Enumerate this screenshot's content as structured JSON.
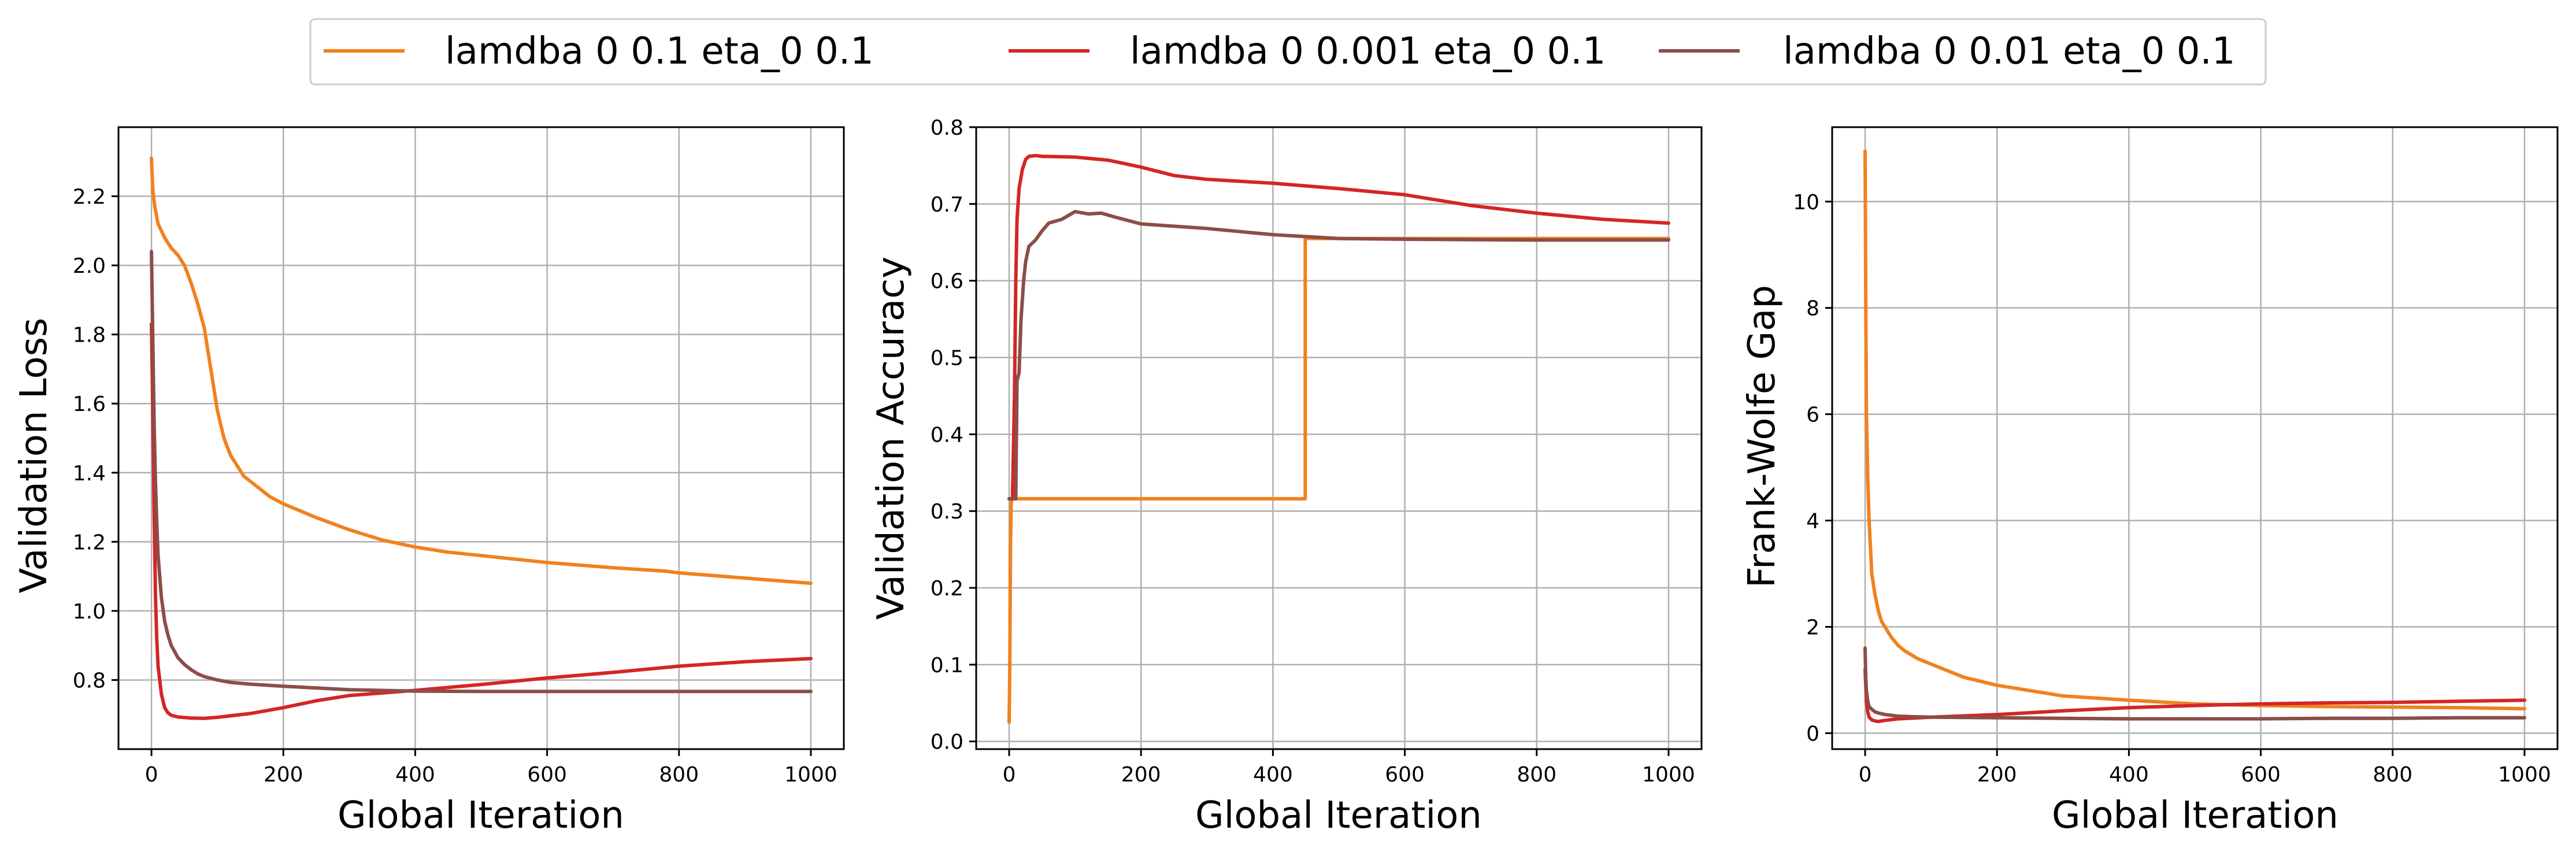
{
  "legend": {
    "placement": "top-center",
    "entries": [
      {
        "label": "lamdba 0 0.1 eta_0 0.1",
        "color": "#f0821e"
      },
      {
        "label": "lamdba 0 0.001 eta_0 0.1",
        "color": "#d32626"
      },
      {
        "label": "lamdba 0 0.01 eta_0 0.1",
        "color": "#8c4d48"
      }
    ]
  },
  "chart_data": [
    {
      "type": "line",
      "title": "",
      "xlabel": "Global Iteration",
      "ylabel": "Validation Loss",
      "xlim": [
        -50,
        1050
      ],
      "ylim": [
        0.6,
        2.4
      ],
      "xticks": [
        0,
        200,
        400,
        600,
        800,
        1000
      ],
      "yticks": [
        0.8,
        1.0,
        1.2,
        1.4,
        1.6,
        1.8,
        2.0,
        2.2
      ],
      "ytick_labels": [
        "0.8",
        "1.0",
        "1.2",
        "1.4",
        "1.6",
        "1.8",
        "2.0",
        "2.2"
      ],
      "grid": true,
      "series": [
        {
          "name": "lamdba 0 0.1 eta_0 0.1",
          "color": "#f0821e",
          "x": [
            0,
            2,
            5,
            10,
            20,
            30,
            40,
            50,
            60,
            70,
            80,
            90,
            100,
            110,
            120,
            140,
            160,
            180,
            200,
            250,
            300,
            350,
            400,
            450,
            500,
            600,
            700,
            780,
            800,
            900,
            1000
          ],
          "y": [
            2.31,
            2.22,
            2.17,
            2.12,
            2.08,
            2.05,
            2.03,
            2.0,
            1.95,
            1.89,
            1.82,
            1.7,
            1.58,
            1.5,
            1.45,
            1.39,
            1.36,
            1.33,
            1.31,
            1.27,
            1.235,
            1.205,
            1.185,
            1.17,
            1.16,
            1.14,
            1.125,
            1.115,
            1.11,
            1.095,
            1.08
          ]
        },
        {
          "name": "lamdba 0 0.001 eta_0 0.1",
          "color": "#d32626",
          "x": [
            0,
            2,
            4,
            6,
            8,
            10,
            15,
            20,
            25,
            30,
            40,
            60,
            80,
            100,
            150,
            200,
            250,
            300,
            400,
            500,
            600,
            700,
            800,
            900,
            1000
          ],
          "y": [
            1.83,
            1.6,
            1.3,
            1.05,
            0.92,
            0.84,
            0.76,
            0.72,
            0.705,
            0.698,
            0.693,
            0.69,
            0.689,
            0.692,
            0.703,
            0.72,
            0.74,
            0.755,
            0.77,
            0.787,
            0.806,
            0.822,
            0.84,
            0.853,
            0.862
          ]
        },
        {
          "name": "lamdba 0 0.01 eta_0 0.1",
          "color": "#8c4d48",
          "x": [
            0,
            2,
            4,
            6,
            8,
            10,
            15,
            20,
            25,
            30,
            40,
            50,
            60,
            70,
            80,
            100,
            120,
            150,
            200,
            300,
            400,
            500,
            700,
            1000
          ],
          "y": [
            2.04,
            1.8,
            1.55,
            1.38,
            1.26,
            1.16,
            1.04,
            0.97,
            0.93,
            0.9,
            0.865,
            0.845,
            0.83,
            0.818,
            0.81,
            0.8,
            0.793,
            0.788,
            0.782,
            0.772,
            0.768,
            0.767,
            0.767,
            0.767
          ]
        }
      ]
    },
    {
      "type": "line",
      "title": "",
      "xlabel": "Global Iteration",
      "ylabel": "Validation Accuracy",
      "xlim": [
        -50,
        1050
      ],
      "ylim": [
        -0.01,
        0.8
      ],
      "xticks": [
        0,
        200,
        400,
        600,
        800,
        1000
      ],
      "yticks": [
        0.0,
        0.1,
        0.2,
        0.3,
        0.4,
        0.5,
        0.6,
        0.7,
        0.8
      ],
      "ytick_labels": [
        "0.0",
        "0.1",
        "0.2",
        "0.3",
        "0.4",
        "0.5",
        "0.6",
        "0.7",
        "0.8"
      ],
      "grid": true,
      "series": [
        {
          "name": "lamdba 0 0.1 eta_0 0.1",
          "color": "#f0821e",
          "x": [
            0,
            1,
            2,
            3,
            4,
            449,
            449,
            600,
            800,
            1000
          ],
          "y": [
            0.025,
            0.1,
            0.25,
            0.31,
            0.316,
            0.316,
            0.655,
            0.655,
            0.655,
            0.655
          ]
        },
        {
          "name": "lamdba 0 0.001 eta_0 0.1",
          "color": "#d32626",
          "x": [
            0,
            5,
            8,
            10,
            12,
            15,
            20,
            25,
            30,
            40,
            50,
            100,
            150,
            200,
            250,
            300,
            400,
            500,
            600,
            700,
            800,
            900,
            1000
          ],
          "y": [
            0.316,
            0.316,
            0.45,
            0.6,
            0.68,
            0.72,
            0.745,
            0.758,
            0.762,
            0.763,
            0.762,
            0.761,
            0.757,
            0.748,
            0.737,
            0.732,
            0.727,
            0.72,
            0.712,
            0.698,
            0.688,
            0.68,
            0.675
          ]
        },
        {
          "name": "lamdba 0 0.01 eta_0 0.1",
          "color": "#8c4d48",
          "x": [
            0,
            10,
            12,
            15,
            18,
            22,
            25,
            30,
            40,
            50,
            60,
            80,
            100,
            120,
            140,
            160,
            200,
            300,
            400,
            500,
            600,
            800,
            1000
          ],
          "y": [
            0.316,
            0.316,
            0.47,
            0.48,
            0.55,
            0.6,
            0.625,
            0.645,
            0.653,
            0.665,
            0.675,
            0.68,
            0.69,
            0.687,
            0.688,
            0.683,
            0.674,
            0.668,
            0.66,
            0.655,
            0.654,
            0.653,
            0.653
          ]
        }
      ]
    },
    {
      "type": "line",
      "title": "",
      "xlabel": "Global Iteration",
      "ylabel": "Frank-Wolfe Gap",
      "xlim": [
        -50,
        1050
      ],
      "ylim": [
        -0.3,
        11.4
      ],
      "xticks": [
        0,
        200,
        400,
        600,
        800,
        1000
      ],
      "yticks": [
        0,
        2,
        4,
        6,
        8,
        10
      ],
      "ytick_labels": [
        "0",
        "2",
        "4",
        "6",
        "8",
        "10"
      ],
      "grid": true,
      "series": [
        {
          "name": "lamdba 0 0.1 eta_0 0.1",
          "color": "#f0821e",
          "x": [
            0,
            1,
            2,
            4,
            6,
            8,
            10,
            15,
            20,
            25,
            30,
            40,
            50,
            60,
            80,
            100,
            120,
            150,
            200,
            250,
            300,
            400,
            500,
            600,
            700,
            800,
            900,
            1000
          ],
          "y": [
            10.95,
            8.0,
            6.0,
            4.8,
            4.0,
            3.5,
            3.0,
            2.6,
            2.3,
            2.1,
            2.0,
            1.8,
            1.65,
            1.55,
            1.4,
            1.3,
            1.2,
            1.05,
            0.9,
            0.8,
            0.7,
            0.62,
            0.55,
            0.52,
            0.5,
            0.49,
            0.48,
            0.46
          ]
        },
        {
          "name": "lamdba 0 0.001 eta_0 0.1",
          "color": "#d32626",
          "x": [
            0,
            2,
            4,
            6,
            10,
            15,
            20,
            30,
            50,
            100,
            200,
            300,
            400,
            500,
            600,
            700,
            800,
            900,
            1000
          ],
          "y": [
            1.2,
            0.6,
            0.4,
            0.3,
            0.25,
            0.23,
            0.22,
            0.24,
            0.27,
            0.3,
            0.35,
            0.42,
            0.48,
            0.52,
            0.55,
            0.57,
            0.58,
            0.6,
            0.62
          ]
        },
        {
          "name": "lamdba 0 0.01 eta_0 0.1",
          "color": "#8c4d48",
          "x": [
            0,
            1,
            2,
            4,
            6,
            10,
            15,
            20,
            30,
            50,
            100,
            200,
            300,
            400,
            500,
            600,
            700,
            800,
            900,
            1000
          ],
          "y": [
            1.6,
            1.0,
            0.8,
            0.6,
            0.5,
            0.45,
            0.4,
            0.38,
            0.35,
            0.32,
            0.3,
            0.29,
            0.28,
            0.27,
            0.27,
            0.27,
            0.28,
            0.28,
            0.29,
            0.29
          ]
        }
      ]
    }
  ]
}
